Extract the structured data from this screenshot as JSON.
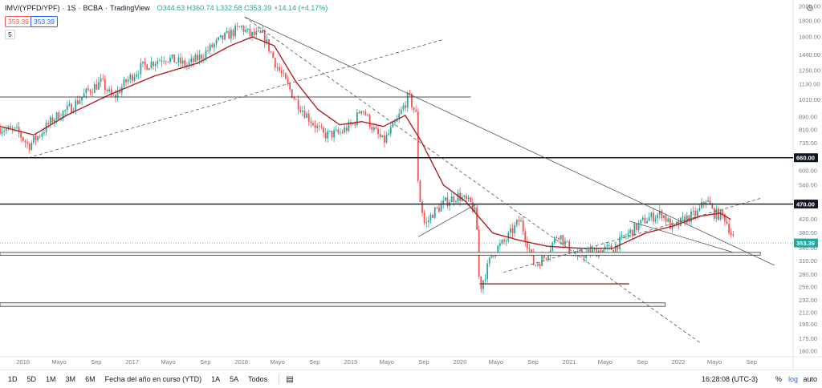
{
  "header": {
    "symbol": "IMV/(YPFD/YPF)",
    "interval": "1S",
    "exchange": "BCBA",
    "source": "TradingView",
    "ohlc": "O344.63 H360.74 L332.58 C353.39",
    "change": "+14.14 (+4.17%)",
    "sell_price": "353.39",
    "buy_price": "353.39",
    "volume_label": "5"
  },
  "toolbar": {
    "timeframes": [
      "1D",
      "5D",
      "1M",
      "3M",
      "6M",
      "Fecha del año en curso (YTD)",
      "1A",
      "5A",
      "Todos"
    ],
    "clock": "16:28:08 (UTC-3)",
    "percent": "%",
    "log": "log",
    "auto": "auto"
  },
  "colors": {
    "up": "#26a69a",
    "down": "#ef5350",
    "ma": "#b71c1c",
    "line": "#131722"
  },
  "icons": [
    "calendar-range-icon",
    "settings-gear-icon"
  ],
  "chart_data": {
    "type": "candlestick",
    "scale": "log",
    "y_ticks": [
      2000,
      1800,
      1600,
      1400,
      1250,
      1130,
      1010,
      890,
      810,
      735,
      660,
      600,
      540,
      470,
      420,
      380,
      340,
      310,
      280,
      256,
      232,
      212,
      195,
      175,
      160
    ],
    "x_ticks": [
      {
        "label": "2016",
        "t": 2016.0
      },
      {
        "label": "Mayo",
        "t": 2016.33
      },
      {
        "label": "Sep",
        "t": 2016.67
      },
      {
        "label": "2017",
        "t": 2017.0
      },
      {
        "label": "Mayo",
        "t": 2017.33
      },
      {
        "label": "Sep",
        "t": 2017.67
      },
      {
        "label": "2018",
        "t": 2018.0
      },
      {
        "label": "Mayo",
        "t": 2018.33
      },
      {
        "label": "Sep",
        "t": 2018.67
      },
      {
        "label": "2019",
        "t": 2019.0
      },
      {
        "label": "Mayo",
        "t": 2019.33
      },
      {
        "label": "Sep",
        "t": 2019.67
      },
      {
        "label": "2020",
        "t": 2020.0
      },
      {
        "label": "Mayo",
        "t": 2020.33
      },
      {
        "label": "Sep",
        "t": 2020.67
      },
      {
        "label": "2021",
        "t": 2021.0
      },
      {
        "label": "Mayo",
        "t": 2021.33
      },
      {
        "label": "Sep",
        "t": 2021.67
      },
      {
        "label": "2022",
        "t": 2022.0
      },
      {
        "label": "Mayo",
        "t": 2022.33
      },
      {
        "label": "Sep",
        "t": 2022.67
      }
    ],
    "price_anchors": [
      {
        "t": 2015.79,
        "v": 820
      },
      {
        "t": 2015.95,
        "v": 800
      },
      {
        "t": 2016.05,
        "v": 720
      },
      {
        "t": 2016.15,
        "v": 780
      },
      {
        "t": 2016.28,
        "v": 880
      },
      {
        "t": 2016.45,
        "v": 960
      },
      {
        "t": 2016.6,
        "v": 1080
      },
      {
        "t": 2016.72,
        "v": 1150
      },
      {
        "t": 2016.82,
        "v": 1020
      },
      {
        "t": 2016.95,
        "v": 1160
      },
      {
        "t": 2017.08,
        "v": 1280
      },
      {
        "t": 2017.3,
        "v": 1380
      },
      {
        "t": 2017.5,
        "v": 1300
      },
      {
        "t": 2017.62,
        "v": 1380
      },
      {
        "t": 2017.8,
        "v": 1560
      },
      {
        "t": 2018.0,
        "v": 1720
      },
      {
        "t": 2018.08,
        "v": 1620
      },
      {
        "t": 2018.2,
        "v": 1620
      },
      {
        "t": 2018.32,
        "v": 1300
      },
      {
        "t": 2018.5,
        "v": 1000
      },
      {
        "t": 2018.62,
        "v": 880
      },
      {
        "t": 2018.75,
        "v": 780
      },
      {
        "t": 2018.9,
        "v": 790
      },
      {
        "t": 2019.03,
        "v": 850
      },
      {
        "t": 2019.1,
        "v": 960
      },
      {
        "t": 2019.2,
        "v": 820
      },
      {
        "t": 2019.3,
        "v": 740
      },
      {
        "t": 2019.42,
        "v": 860
      },
      {
        "t": 2019.53,
        "v": 1040
      },
      {
        "t": 2019.6,
        "v": 900
      },
      {
        "t": 2019.62,
        "v": 520
      },
      {
        "t": 2019.68,
        "v": 400
      },
      {
        "t": 2019.75,
        "v": 440
      },
      {
        "t": 2019.88,
        "v": 480
      },
      {
        "t": 2019.98,
        "v": 500
      },
      {
        "t": 2020.1,
        "v": 470
      },
      {
        "t": 2020.15,
        "v": 430
      },
      {
        "t": 2020.18,
        "v": 250
      },
      {
        "t": 2020.3,
        "v": 330
      },
      {
        "t": 2020.42,
        "v": 360
      },
      {
        "t": 2020.55,
        "v": 420
      },
      {
        "t": 2020.68,
        "v": 300
      },
      {
        "t": 2020.78,
        "v": 320
      },
      {
        "t": 2020.9,
        "v": 380
      },
      {
        "t": 2021.05,
        "v": 320
      },
      {
        "t": 2021.2,
        "v": 330
      },
      {
        "t": 2021.4,
        "v": 340
      },
      {
        "t": 2021.55,
        "v": 380
      },
      {
        "t": 2021.7,
        "v": 420
      },
      {
        "t": 2021.85,
        "v": 440
      },
      {
        "t": 2021.95,
        "v": 390
      },
      {
        "t": 2022.05,
        "v": 420
      },
      {
        "t": 2022.18,
        "v": 440
      },
      {
        "t": 2022.25,
        "v": 490
      },
      {
        "t": 2022.32,
        "v": 440
      },
      {
        "t": 2022.42,
        "v": 430
      },
      {
        "t": 2022.52,
        "v": 353.39
      }
    ],
    "ma_anchors": [
      {
        "t": 2015.79,
        "v": 830
      },
      {
        "t": 2016.1,
        "v": 780
      },
      {
        "t": 2016.4,
        "v": 900
      },
      {
        "t": 2016.8,
        "v": 1050
      },
      {
        "t": 2017.2,
        "v": 1200
      },
      {
        "t": 2017.6,
        "v": 1320
      },
      {
        "t": 2017.9,
        "v": 1500
      },
      {
        "t": 2018.1,
        "v": 1600
      },
      {
        "t": 2018.3,
        "v": 1500
      },
      {
        "t": 2018.5,
        "v": 1150
      },
      {
        "t": 2018.7,
        "v": 940
      },
      {
        "t": 2018.9,
        "v": 840
      },
      {
        "t": 2019.1,
        "v": 860
      },
      {
        "t": 2019.3,
        "v": 830
      },
      {
        "t": 2019.5,
        "v": 900
      },
      {
        "t": 2019.65,
        "v": 740
      },
      {
        "t": 2019.85,
        "v": 540
      },
      {
        "t": 2020.05,
        "v": 480
      },
      {
        "t": 2020.3,
        "v": 380
      },
      {
        "t": 2020.55,
        "v": 360
      },
      {
        "t": 2020.8,
        "v": 345
      },
      {
        "t": 2021.1,
        "v": 340
      },
      {
        "t": 2021.4,
        "v": 340
      },
      {
        "t": 2021.7,
        "v": 380
      },
      {
        "t": 2021.95,
        "v": 400
      },
      {
        "t": 2022.2,
        "v": 430
      },
      {
        "t": 2022.38,
        "v": 440
      },
      {
        "t": 2022.48,
        "v": 420
      }
    ],
    "horizontal_lines": [
      {
        "value": 1030,
        "t_start": 2015.79,
        "t_end": 2020.1,
        "style": "thin"
      },
      {
        "value": 660,
        "t_start": 2015.79,
        "t_end": 2023.05,
        "style": "thick",
        "label": "660.00"
      },
      {
        "value": 470,
        "t_start": 2015.79,
        "t_end": 2023.05,
        "style": "thick",
        "label": "470.00"
      }
    ],
    "zones": [
      {
        "low": 323,
        "high": 330,
        "t_start": 2015.79,
        "t_end": 2022.75
      },
      {
        "low": 222,
        "high": 228,
        "t_start": 2015.79,
        "t_end": 2021.88
      }
    ],
    "trendlines": [
      {
        "t1": 2018.03,
        "v1": 1850,
        "t2": 2022.88,
        "v2": 300,
        "style": "solid"
      },
      {
        "t1": 2018.03,
        "v1": 1850,
        "t2": 2022.2,
        "v2": 170,
        "style": "dashed"
      },
      {
        "t1": 2016.05,
        "v1": 660,
        "t2": 2019.85,
        "v2": 1570,
        "style": "dashed"
      },
      {
        "t1": 2020.4,
        "v1": 285,
        "t2": 2022.75,
        "v2": 490,
        "style": "dashed"
      },
      {
        "t1": 2019.62,
        "v1": 370,
        "t2": 2020.15,
        "v2": 470,
        "style": "solid"
      },
      {
        "t1": 2020.18,
        "v1": 262,
        "t2": 2021.55,
        "v2": 262,
        "style": "support"
      },
      {
        "t1": 2021.55,
        "v1": 415,
        "t2": 2022.5,
        "v2": 330,
        "style": "solid"
      }
    ],
    "price_labels": [
      {
        "label": "660.00",
        "value": 660,
        "kind": "black"
      },
      {
        "label": "470.00",
        "value": 470,
        "kind": "black"
      },
      {
        "label": "353.39",
        "value": 353.39,
        "kind": "green"
      }
    ]
  }
}
